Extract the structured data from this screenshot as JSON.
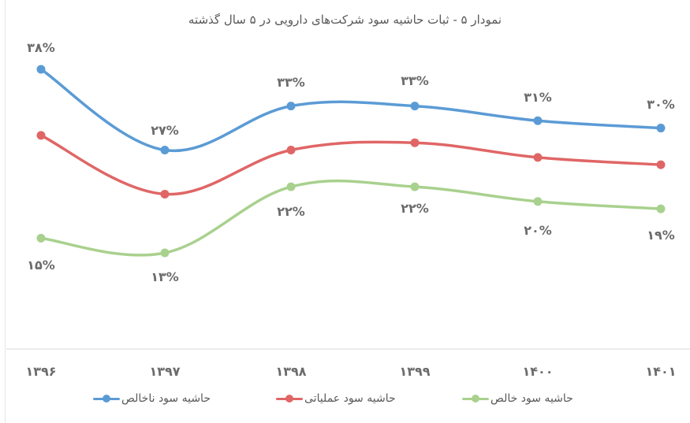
{
  "title": "نمودار ۵ - ثبات حاشیه سود شرکت‌های دارویی در ۵ سال گذشته",
  "colors": {
    "gross": "#5b9bd5",
    "operating": "#e06666",
    "net": "#a9d18e",
    "text": "#6b6b6b",
    "axis": "#e6e6e6"
  },
  "x_labels": [
    "۱۳۹۶",
    "۱۳۹۷",
    "۱۳۹۸",
    "۱۳۹۹",
    "۱۴۰۰",
    "۱۴۰۱"
  ],
  "data_labels": {
    "gross": [
      "۳۸%",
      "۲۷%",
      "۳۳%",
      "۳۳%",
      "۳۱%",
      "۳۰%"
    ],
    "net": [
      "۱۵%",
      "۱۳%",
      "۲۲%",
      "۲۲%",
      "۲۰%",
      "۱۹%"
    ]
  },
  "legend": {
    "gross": "حاشیه سود ناخالص",
    "operating": "حاشیه سود عملیاتی",
    "net": "حاشیه سود خالص"
  },
  "chart_data": {
    "type": "line",
    "title": "نمودار ۵ - ثبات حاشیه سود شرکت‌های دارویی در ۵ سال گذشته",
    "xlabel": "",
    "ylabel": "",
    "categories": [
      "1396",
      "1397",
      "1398",
      "1399",
      "1400",
      "1401"
    ],
    "series": [
      {
        "name": "حاشیه سود ناخالص",
        "color": "#5b9bd5",
        "values": [
          38,
          27,
          33,
          33,
          31,
          30
        ],
        "labeled": true
      },
      {
        "name": "حاشیه سود عملیاتی",
        "color": "#e06666",
        "values": [
          29,
          21,
          27,
          28,
          26,
          25
        ],
        "labeled": false
      },
      {
        "name": "حاشیه سود خالص",
        "color": "#a9d18e",
        "values": [
          15,
          13,
          22,
          22,
          20,
          19
        ],
        "labeled": true
      }
    ],
    "unit": "%",
    "smooth": true,
    "grid": false,
    "legend_position": "bottom"
  }
}
